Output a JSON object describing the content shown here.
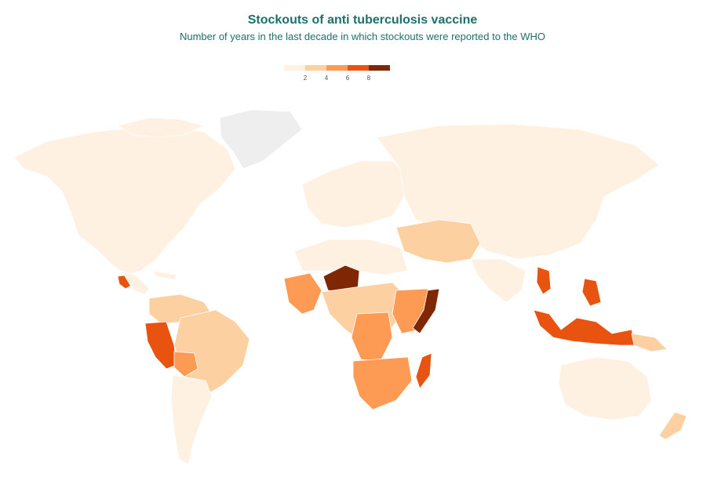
{
  "title": "Stockouts of anti tuberculosis vaccine",
  "subtitle": "Number of years in the last decade in which stockouts were reported to the WHO",
  "legend": {
    "bins": [
      {
        "label": "",
        "color": "#fff1e2"
      },
      {
        "label": "2",
        "color": "#fdd0a2"
      },
      {
        "label": "4",
        "color": "#fd9a54"
      },
      {
        "label": "6",
        "color": "#e8540f"
      },
      {
        "label": "8",
        "color": "#7f2704"
      }
    ],
    "ticks": [
      "2",
      "4",
      "6",
      "8"
    ]
  },
  "colors": {
    "no_data": "#eeeeee",
    "zero": "#fff1e2",
    "low": "#fdd0a2",
    "mid": "#fd9a54",
    "high": "#e8540f",
    "max": "#7f2704"
  },
  "regions": [
    {
      "name": "Greenland",
      "bin": "no_data"
    },
    {
      "name": "North America",
      "bin": "zero"
    },
    {
      "name": "Mexico",
      "bin": "high"
    },
    {
      "name": "Peru",
      "bin": "high"
    },
    {
      "name": "Brazil",
      "bin": "low"
    },
    {
      "name": "Niger",
      "bin": "max"
    },
    {
      "name": "Somalia",
      "bin": "max"
    },
    {
      "name": "Madagascar",
      "bin": "high"
    },
    {
      "name": "Indonesia",
      "bin": "high"
    },
    {
      "name": "Australia",
      "bin": "zero"
    }
  ]
}
